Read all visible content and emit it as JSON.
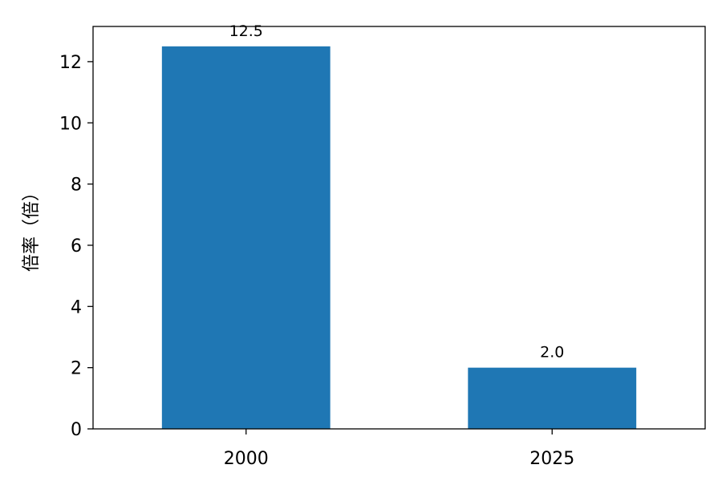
{
  "chart_data": {
    "type": "bar",
    "categories": [
      "2000",
      "2025"
    ],
    "values": [
      12.5,
      2.0
    ],
    "data_labels": [
      "12.5",
      "2.0"
    ],
    "title": "",
    "xlabel": "",
    "ylabel": "倍率（倍）",
    "ylim": [
      0,
      13.15
    ],
    "xlim": [
      -0.5,
      1.5
    ],
    "yticks": [
      0,
      2,
      4,
      6,
      8,
      10,
      12
    ],
    "bar_width": 0.55,
    "grid": false,
    "bar_color": "#1f77b4"
  }
}
